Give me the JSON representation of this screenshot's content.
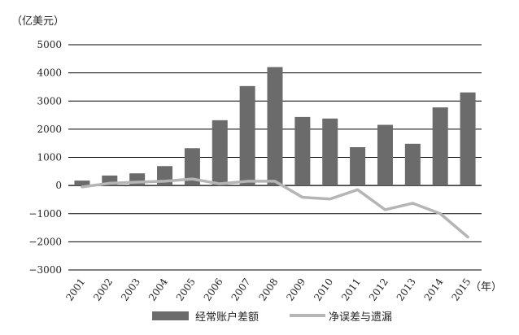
{
  "chart_data": {
    "type": "bar",
    "ylabel": "（亿美元）",
    "xlabel": "（年）",
    "categories": [
      "2001",
      "2002",
      "2003",
      "2004",
      "2005",
      "2006",
      "2007",
      "2008",
      "2009",
      "2010",
      "2011",
      "2012",
      "2013",
      "2014",
      "2015"
    ],
    "ylim": [
      -3000,
      5000
    ],
    "yticks": [
      5000,
      4000,
      3000,
      2000,
      1000,
      0,
      -1000,
      -2000,
      -3000
    ],
    "ytick_labels": [
      "5000",
      "4000",
      "3000",
      "2000",
      "1000",
      "0",
      "−1000",
      "−2000",
      "−3000"
    ],
    "grid": true,
    "legend_position": "bottom",
    "series": [
      {
        "name": "经常账户差额",
        "type": "bar",
        "color": "#6b6b6b",
        "values": [
          174,
          354,
          431,
          689,
          1324,
          2318,
          3532,
          4206,
          2433,
          2378,
          1361,
          2154,
          1482,
          2774,
          3306
        ]
      },
      {
        "name": "净误差与遗漏",
        "type": "line",
        "color": "#b5b5b5",
        "values": [
          -50,
          80,
          120,
          150,
          230,
          60,
          150,
          150,
          -420,
          -480,
          -150,
          -860,
          -630,
          -1000,
          -1830
        ]
      }
    ]
  }
}
